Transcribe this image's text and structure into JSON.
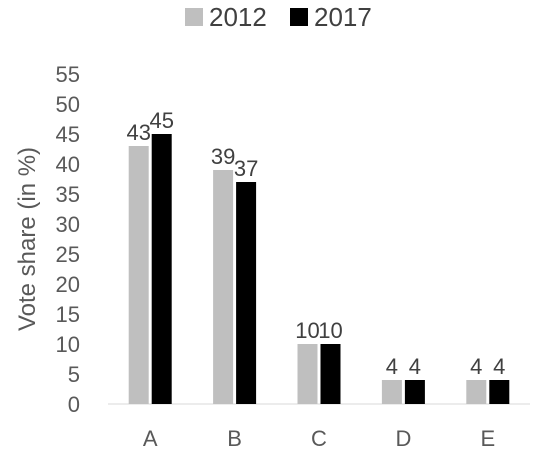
{
  "chart_data": {
    "type": "bar",
    "categories": [
      "A",
      "B",
      "C",
      "D",
      "E"
    ],
    "series": [
      {
        "name": "2012",
        "values": [
          43,
          39,
          10,
          4,
          4
        ],
        "color": "#bfbfbf"
      },
      {
        "name": "2017",
        "values": [
          45,
          37,
          10,
          4,
          4
        ],
        "color": "#000000"
      }
    ],
    "ylabel": "Vote share (in %)",
    "xlabel": "",
    "ylim": [
      0,
      55
    ],
    "yticks": [
      0,
      5,
      10,
      15,
      20,
      25,
      30,
      35,
      40,
      45,
      50,
      55
    ],
    "data_labels": true,
    "legend_position": "top-center",
    "grid": false
  }
}
